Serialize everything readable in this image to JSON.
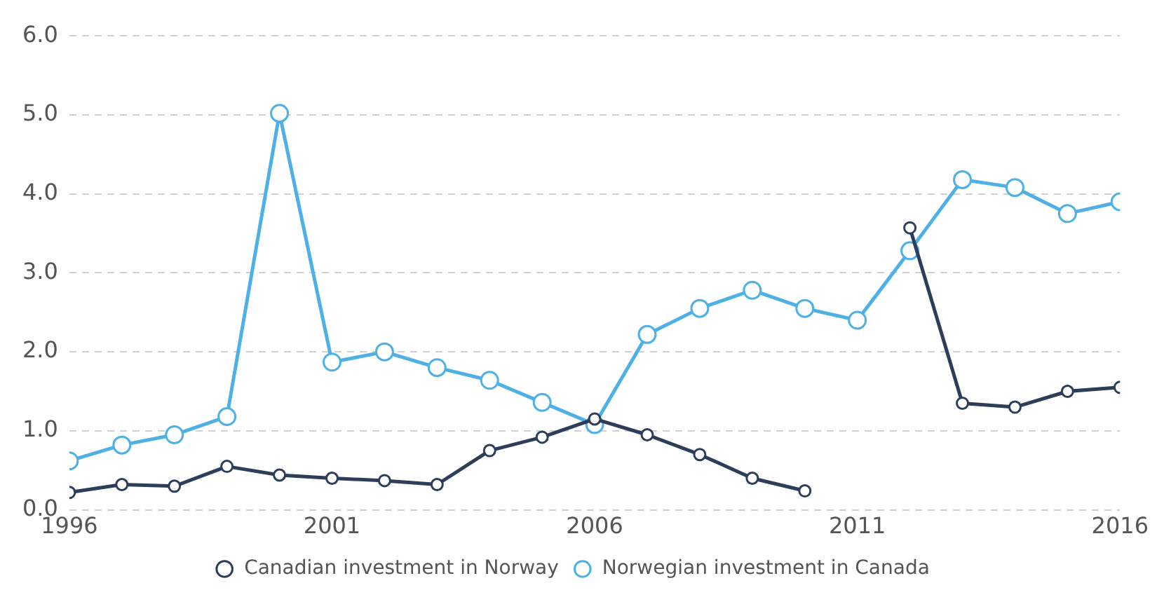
{
  "chart_data": {
    "type": "line",
    "x": [
      1996,
      1997,
      1998,
      1999,
      2000,
      2001,
      2002,
      2003,
      2004,
      2005,
      2006,
      2007,
      2008,
      2009,
      2010,
      2011,
      2012,
      2013,
      2014,
      2015,
      2016
    ],
    "series": [
      {
        "name": "Canadian investment in Norway",
        "color": "#2d3e5a",
        "values": [
          0.22,
          0.32,
          0.3,
          0.55,
          0.44,
          0.4,
          0.37,
          0.32,
          0.75,
          0.92,
          1.15,
          0.95,
          0.7,
          0.4,
          0.24,
          null,
          3.57,
          1.35,
          1.3,
          1.5,
          1.55
        ]
      },
      {
        "name": "Norwegian investment in Canada",
        "color": "#4fb0e6",
        "values": [
          0.62,
          0.82,
          0.95,
          1.18,
          5.02,
          1.87,
          2.0,
          1.8,
          1.64,
          1.36,
          1.08,
          2.22,
          2.55,
          2.78,
          2.55,
          2.4,
          3.28,
          4.18,
          4.08,
          3.75,
          3.9
        ]
      }
    ],
    "xlim": [
      1996,
      2016
    ],
    "xticks": [
      1996,
      2001,
      2006,
      2011,
      2016
    ],
    "ylim": [
      0,
      6
    ],
    "yticks": [
      {
        "value": 0,
        "label": "0.0"
      },
      {
        "value": 1,
        "label": "1.0"
      },
      {
        "value": 2,
        "label": "2.0"
      },
      {
        "value": 3,
        "label": "3.0"
      },
      {
        "value": 4,
        "label": "4.0"
      },
      {
        "value": 5,
        "label": "5.0"
      },
      {
        "value": 6,
        "label": "6.0"
      }
    ],
    "grid": "y",
    "legend": "bottom",
    "marker": "circle",
    "line_style": "solid"
  }
}
